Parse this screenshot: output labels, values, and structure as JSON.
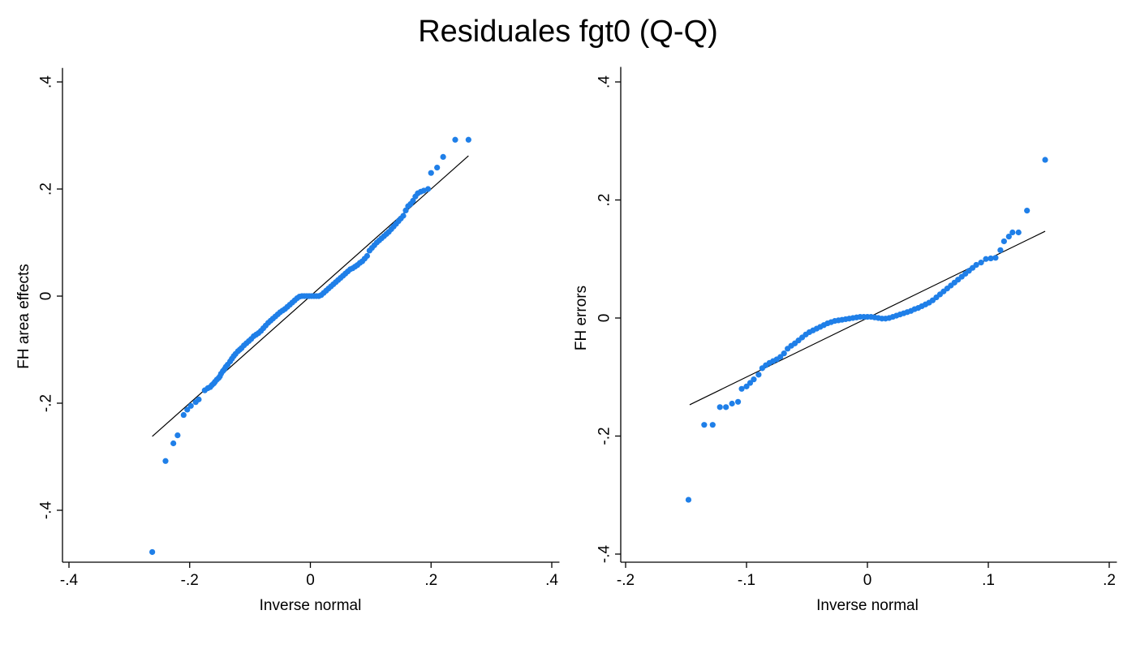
{
  "title": "Residuales fgt0 (Q-Q)",
  "colors": {
    "points": "#1f7fe8",
    "fit_line": "#000000",
    "axis": "#000000"
  },
  "chart_data": [
    {
      "type": "scatter",
      "xlabel": "Inverse normal",
      "ylabel": "FH area effects",
      "xlim": [
        -0.41,
        0.41
      ],
      "ylim": [
        -0.5,
        0.42
      ],
      "xticks": [
        -0.4,
        -0.2,
        0,
        0.2,
        0.4
      ],
      "xtick_labels": [
        "-.4",
        "-.2",
        "0",
        ".2",
        ".4"
      ],
      "yticks": [
        -0.4,
        -0.2,
        0,
        0.2,
        0.4
      ],
      "ytick_labels": [
        "-.4",
        "-.2",
        "0",
        ".2",
        ".4"
      ],
      "grid": false,
      "fit_line": {
        "x": [
          -0.262,
          0.262
        ],
        "y": [
          -0.262,
          0.262
        ]
      },
      "points": {
        "x": [
          -0.262,
          -0.24,
          -0.227,
          -0.22,
          -0.21,
          -0.204,
          -0.198,
          -0.19,
          -0.185,
          -0.175,
          -0.17,
          -0.166,
          -0.163,
          -0.16,
          -0.158,
          -0.155,
          -0.152,
          -0.15,
          -0.148,
          -0.145,
          -0.142,
          -0.14,
          -0.137,
          -0.133,
          -0.13,
          -0.127,
          -0.124,
          -0.12,
          -0.117,
          -0.114,
          -0.11,
          -0.106,
          -0.102,
          -0.098,
          -0.094,
          -0.09,
          -0.086,
          -0.082,
          -0.078,
          -0.074,
          -0.07,
          -0.066,
          -0.062,
          -0.058,
          -0.054,
          -0.05,
          -0.046,
          -0.042,
          -0.038,
          -0.034,
          -0.03,
          -0.026,
          -0.022,
          -0.018,
          -0.014,
          -0.01,
          -0.006,
          -0.002,
          0.002,
          0.006,
          0.01,
          0.014,
          0.018,
          0.022,
          0.026,
          0.03,
          0.034,
          0.038,
          0.042,
          0.046,
          0.05,
          0.054,
          0.058,
          0.062,
          0.066,
          0.07,
          0.074,
          0.078,
          0.082,
          0.086,
          0.09,
          0.094,
          0.098,
          0.102,
          0.106,
          0.11,
          0.114,
          0.118,
          0.122,
          0.126,
          0.13,
          0.134,
          0.138,
          0.142,
          0.146,
          0.15,
          0.154,
          0.158,
          0.162,
          0.166,
          0.17,
          0.174,
          0.178,
          0.183,
          0.188,
          0.195,
          0.2,
          0.21,
          0.22,
          0.24,
          0.262
        ],
        "y": [
          -0.478,
          -0.308,
          -0.275,
          -0.26,
          -0.222,
          -0.212,
          -0.205,
          -0.198,
          -0.193,
          -0.176,
          -0.172,
          -0.17,
          -0.166,
          -0.163,
          -0.16,
          -0.156,
          -0.153,
          -0.15,
          -0.145,
          -0.14,
          -0.136,
          -0.132,
          -0.128,
          -0.122,
          -0.117,
          -0.112,
          -0.108,
          -0.103,
          -0.1,
          -0.097,
          -0.092,
          -0.088,
          -0.084,
          -0.08,
          -0.075,
          -0.072,
          -0.069,
          -0.065,
          -0.06,
          -0.055,
          -0.05,
          -0.046,
          -0.042,
          -0.038,
          -0.034,
          -0.03,
          -0.027,
          -0.024,
          -0.02,
          -0.016,
          -0.012,
          -0.008,
          -0.004,
          -0.001,
          0.0,
          0.0,
          0.0,
          0.0,
          0.0,
          0.0,
          0.0,
          0.0,
          0.002,
          0.006,
          0.01,
          0.014,
          0.018,
          0.022,
          0.026,
          0.03,
          0.034,
          0.038,
          0.042,
          0.046,
          0.05,
          0.052,
          0.055,
          0.058,
          0.062,
          0.065,
          0.07,
          0.075,
          0.085,
          0.09,
          0.095,
          0.1,
          0.104,
          0.108,
          0.112,
          0.116,
          0.12,
          0.125,
          0.13,
          0.135,
          0.14,
          0.145,
          0.15,
          0.16,
          0.168,
          0.172,
          0.178,
          0.186,
          0.192,
          0.195,
          0.197,
          0.2,
          0.23,
          0.24,
          0.26,
          0.292,
          0.292
        ]
      }
    },
    {
      "type": "scatter",
      "xlabel": "Inverse normal",
      "ylabel": "FH errors",
      "xlim": [
        -0.205,
        0.205
      ],
      "ylim": [
        -0.42,
        0.42
      ],
      "xticks": [
        -0.2,
        -0.1,
        0,
        0.1,
        0.2
      ],
      "xtick_labels": [
        "-.2",
        "-.1",
        "0",
        ".1",
        ".2"
      ],
      "yticks": [
        -0.4,
        -0.2,
        0,
        0.2,
        0.4
      ],
      "ytick_labels": [
        "-.4",
        "-.2",
        "0",
        ".2",
        ".4"
      ],
      "grid": false,
      "fit_line": {
        "x": [
          -0.147,
          0.147
        ],
        "y": [
          -0.147,
          0.147
        ]
      },
      "points": {
        "x": [
          -0.148,
          -0.135,
          -0.128,
          -0.122,
          -0.117,
          -0.112,
          -0.107,
          -0.104,
          -0.1,
          -0.097,
          -0.094,
          -0.09,
          -0.087,
          -0.084,
          -0.081,
          -0.078,
          -0.075,
          -0.072,
          -0.069,
          -0.066,
          -0.063,
          -0.06,
          -0.057,
          -0.054,
          -0.051,
          -0.048,
          -0.045,
          -0.042,
          -0.039,
          -0.036,
          -0.033,
          -0.03,
          -0.027,
          -0.024,
          -0.021,
          -0.018,
          -0.015,
          -0.012,
          -0.009,
          -0.006,
          -0.003,
          0.0,
          0.003,
          0.006,
          0.009,
          0.012,
          0.015,
          0.018,
          0.021,
          0.024,
          0.027,
          0.03,
          0.033,
          0.036,
          0.039,
          0.042,
          0.045,
          0.048,
          0.051,
          0.054,
          0.057,
          0.06,
          0.063,
          0.066,
          0.069,
          0.072,
          0.075,
          0.078,
          0.081,
          0.084,
          0.087,
          0.09,
          0.094,
          0.098,
          0.102,
          0.106,
          0.11,
          0.113,
          0.117,
          0.12,
          0.125,
          0.132,
          0.147
        ],
        "y": [
          -0.308,
          -0.181,
          -0.181,
          -0.151,
          -0.151,
          -0.145,
          -0.142,
          -0.12,
          -0.116,
          -0.11,
          -0.104,
          -0.096,
          -0.085,
          -0.08,
          -0.076,
          -0.073,
          -0.07,
          -0.066,
          -0.06,
          -0.052,
          -0.047,
          -0.043,
          -0.038,
          -0.033,
          -0.028,
          -0.024,
          -0.021,
          -0.018,
          -0.015,
          -0.012,
          -0.009,
          -0.007,
          -0.005,
          -0.004,
          -0.003,
          -0.002,
          -0.001,
          0.0,
          0.001,
          0.002,
          0.002,
          0.002,
          0.002,
          0.001,
          0.0,
          -0.001,
          -0.001,
          0.0,
          0.002,
          0.004,
          0.006,
          0.008,
          0.01,
          0.012,
          0.015,
          0.017,
          0.02,
          0.023,
          0.026,
          0.03,
          0.035,
          0.04,
          0.045,
          0.05,
          0.055,
          0.06,
          0.065,
          0.07,
          0.075,
          0.08,
          0.085,
          0.09,
          0.094,
          0.1,
          0.101,
          0.102,
          0.115,
          0.13,
          0.138,
          0.145,
          0.145,
          0.182,
          0.268
        ]
      }
    }
  ]
}
